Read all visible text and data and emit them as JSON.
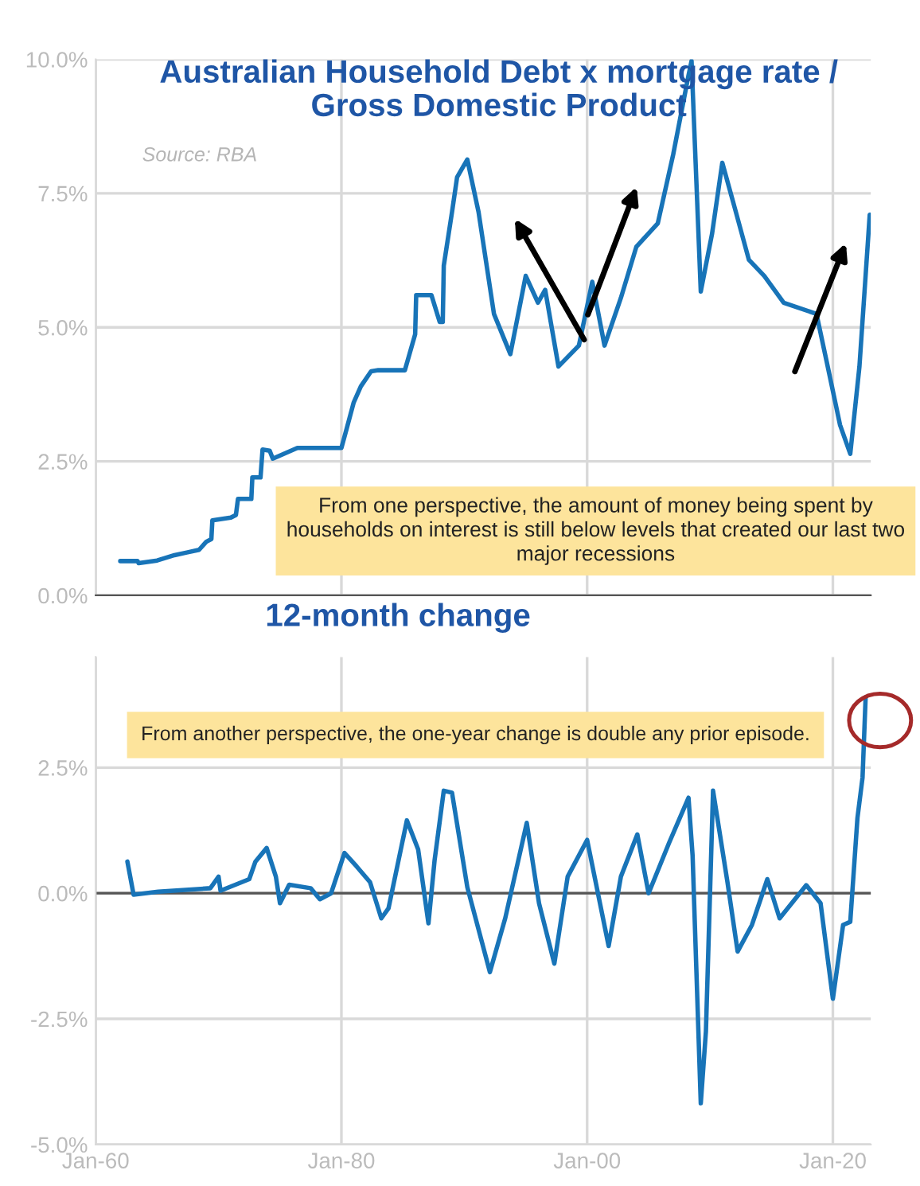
{
  "chart_data": [
    {
      "type": "line",
      "title": "Australian Household Debt x mortgage rate /\nGross Domestic Product",
      "annotations": [
        "Source: RBA",
        "From one perspective, the amount of money being spent by households on interest is still below levels that created our last two major recessions"
      ],
      "x": [
        "1962-01",
        "1963-06",
        "1963-07",
        "1965-01",
        "1966-06",
        "1967-06",
        "1968-06",
        "1969-01",
        "1969-06",
        "1969-07",
        "1971-01",
        "1971-06",
        "1971-08",
        "1972-09",
        "1972-10",
        "1973-06",
        "1973-08",
        "1974-03",
        "1974-06",
        "1975-06",
        "1976-06",
        "1980-01",
        "1980-06",
        "1981-01",
        "1981-08",
        "1982-06",
        "1983-01",
        "1985-03",
        "1986-01",
        "1986-02",
        "1987-05",
        "1988-01",
        "1988-04",
        "1988-05",
        "1989-01",
        "1989-06",
        "1990-04",
        "1991-03",
        "1992-06",
        "1993-10",
        "1995-01",
        "1996-01",
        "1996-08",
        "1997-09",
        "1999-05",
        "2000-06",
        "2001-06",
        "2002-10",
        "2004-01",
        "2005-10",
        "2007-01",
        "2008-04",
        "2008-07",
        "2009-04",
        "2010-03",
        "2011-01",
        "2012-01",
        "2013-03",
        "2014-06",
        "2016-01",
        "2018-09",
        "2019-07",
        "2020-08",
        "2021-06",
        "2022-03",
        "2023-01"
      ],
      "series": [
        {
          "color": "#1874b8",
          "values": [
            0.64,
            0.64,
            0.6,
            0.65,
            0.75,
            0.8,
            0.85,
            1.0,
            1.05,
            1.4,
            1.45,
            1.5,
            1.8,
            1.8,
            2.2,
            2.2,
            2.72,
            2.7,
            2.55,
            2.65,
            2.75,
            2.75,
            3.1,
            3.6,
            3.9,
            4.18,
            4.2,
            4.2,
            4.87,
            5.6,
            5.6,
            5.1,
            5.1,
            6.15,
            7.15,
            7.8,
            8.13,
            7.15,
            5.25,
            4.5,
            5.96,
            5.46,
            5.7,
            4.27,
            4.66,
            5.85,
            4.66,
            5.55,
            6.5,
            6.94,
            8.22,
            9.7,
            9.97,
            5.67,
            6.74,
            8.07,
            7.24,
            6.26,
            5.96,
            5.46,
            5.25,
            4.36,
            3.18,
            2.64,
            4.27,
            7.1
          ]
        }
      ],
      "xlim": [
        "1960-01",
        "2023-02"
      ],
      "xticks": [
        {
          "value": "1960-01",
          "label": null
        },
        {
          "value": "1980-01",
          "label": null
        },
        {
          "value": "2000-01",
          "label": null
        },
        {
          "value": "2020-01",
          "label": null
        }
      ],
      "ylim": [
        0,
        10
      ],
      "yticks": [
        {
          "value": 0,
          "label": "0.0%"
        },
        {
          "value": 2.5,
          "label": "2.5%"
        },
        {
          "value": 5,
          "label": "5.0%"
        },
        {
          "value": 7.5,
          "label": "7.5%"
        },
        {
          "value": 10,
          "label": "10.0%"
        }
      ],
      "tick_labels": "y",
      "grid": true,
      "line_style": "solid",
      "marker": "none"
    },
    {
      "type": "line",
      "title": "12-month change",
      "annotations": [
        "From another perspective, the one-year change is double any prior episode."
      ],
      "x": [
        "1962-08",
        "1963-02",
        "1965-02",
        "1969-05",
        "1970-01",
        "1970-03",
        "1972-07",
        "1973-01",
        "1973-12",
        "1974-09",
        "1975-01",
        "1975-10",
        "1977-07",
        "1978-04",
        "1979-03",
        "1980-04",
        "1981-04",
        "1982-05",
        "1983-04",
        "1983-11",
        "1985-05",
        "1986-04",
        "1987-02",
        "1987-08",
        "1988-05",
        "1989-01",
        "1990-04",
        "1992-02",
        "1993-05",
        "1995-02",
        "1996-02",
        "1997-05",
        "1998-06",
        "2000-01",
        "2001-10",
        "2002-10",
        "2004-02",
        "2005-01",
        "2006-09",
        "2008-04",
        "2008-08",
        "2009-04",
        "2009-09",
        "2010-04",
        "2011-06",
        "2012-04",
        "2013-06",
        "2014-09",
        "2015-09",
        "2017-11",
        "2019-01",
        "2020-01",
        "2020-11",
        "2021-06",
        "2022-01",
        "2022-06",
        "2022-09"
      ],
      "series": [
        {
          "color": "#1874b8",
          "values": [
            0.63,
            -0.03,
            0.03,
            0.1,
            0.33,
            0.05,
            0.28,
            0.63,
            0.9,
            0.33,
            -0.2,
            0.17,
            0.1,
            -0.12,
            0.0,
            0.8,
            0.53,
            0.22,
            -0.5,
            -0.3,
            1.45,
            0.87,
            -0.6,
            0.65,
            2.04,
            2.0,
            0.12,
            -1.57,
            -0.5,
            1.4,
            -0.2,
            -1.4,
            0.33,
            1.06,
            -1.05,
            0.33,
            1.17,
            0.0,
            1.0,
            1.9,
            0.75,
            -4.18,
            -2.75,
            2.04,
            0.23,
            -1.16,
            -0.63,
            0.28,
            -0.5,
            0.16,
            -0.2,
            -2.1,
            -0.63,
            -0.57,
            1.5,
            2.3,
            3.9
          ]
        }
      ],
      "xlim": [
        "1960-01",
        "2023-02"
      ],
      "xticks": [
        {
          "value": "1960-01",
          "label": "Jan-60"
        },
        {
          "value": "1980-01",
          "label": "Jan-80"
        },
        {
          "value": "2000-01",
          "label": "Jan-00"
        },
        {
          "value": "2020-01",
          "label": "Jan-20"
        }
      ],
      "ylim": [
        -5,
        4.7
      ],
      "yticks": [
        {
          "value": -5,
          "label": "-5.0%"
        },
        {
          "value": -2.5,
          "label": "-2.5%"
        },
        {
          "value": 0,
          "label": "0.0%"
        },
        {
          "value": 2.5,
          "label": "2.5%"
        }
      ],
      "ref_lines": [
        {
          "axis": "y",
          "value": 0,
          "color": "#555555"
        }
      ],
      "grid": true,
      "line_style": "solid",
      "marker": "none"
    }
  ]
}
